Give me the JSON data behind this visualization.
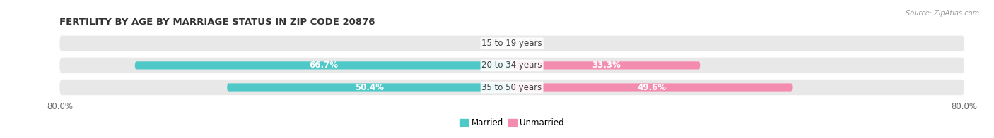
{
  "title": "FERTILITY BY AGE BY MARRIAGE STATUS IN ZIP CODE 20876",
  "source": "Source: ZipAtlas.com",
  "categories": [
    "15 to 19 years",
    "20 to 34 years",
    "35 to 50 years"
  ],
  "married_values": [
    0.0,
    66.7,
    50.4
  ],
  "unmarried_values": [
    0.0,
    33.3,
    49.6
  ],
  "married_color": "#4fc8c8",
  "unmarried_color": "#f48cb0",
  "bar_bg_color": "#e8e8e8",
  "bar_height": 0.72,
  "x_max": 80.0,
  "x_left_label": "80.0%",
  "x_right_label": "80.0%",
  "title_fontsize": 9.5,
  "label_fontsize": 8.5,
  "tick_fontsize": 8.5,
  "figsize": [
    14.06,
    1.96
  ],
  "dpi": 100,
  "legend_labels": [
    "Married",
    "Unmarried"
  ]
}
